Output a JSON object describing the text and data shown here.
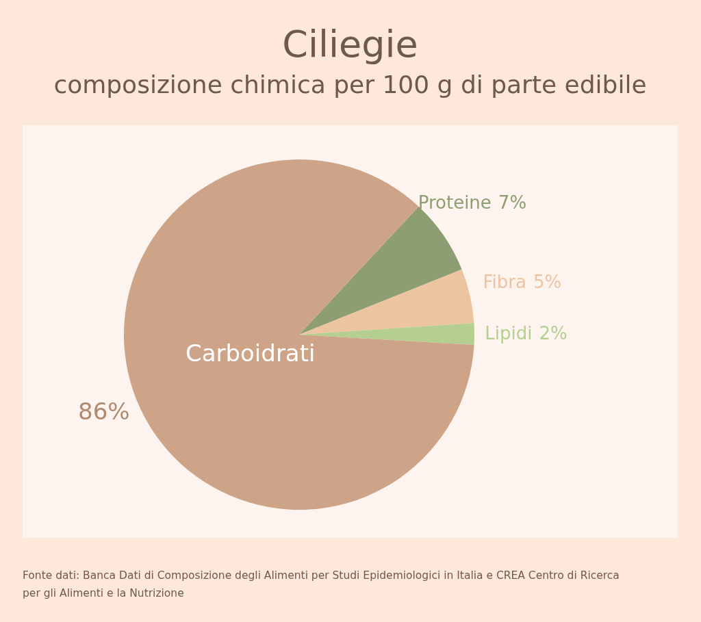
{
  "chart_data": {
    "type": "pie",
    "title": "Ciliegie",
    "subtitle": "composizione chimica per 100 g di parte edibile",
    "categories": [
      "Proteine",
      "Fibra",
      "Lipidi",
      "Carboidrati"
    ],
    "values": [
      7,
      5,
      2,
      86
    ],
    "colors": [
      "#8c9e72",
      "#edc4a0",
      "#b5cf90",
      "#cda488"
    ],
    "value_labels": [
      "7%",
      "5%",
      "2%",
      "86%"
    ],
    "annotations": [
      "Fonte dati: Banca Dati di Composizione degli Alimenti per Studi Epidemiologici in Italia e CREA Centro di Ricerca per gli Alimenti e la Nutrizione"
    ]
  }
}
